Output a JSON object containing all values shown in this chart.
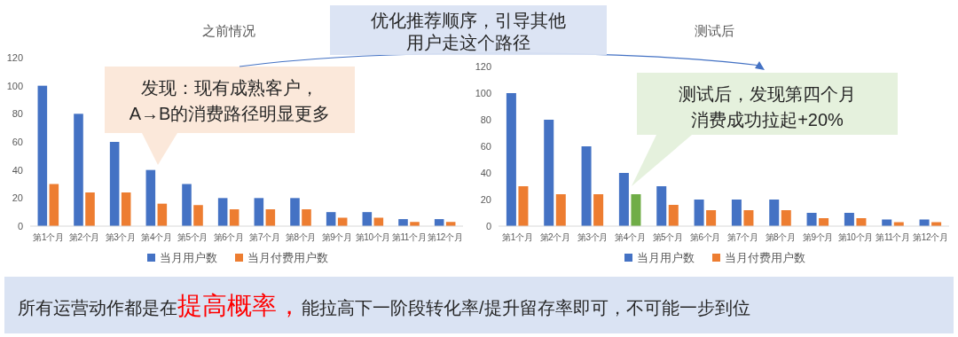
{
  "chart_data": [
    {
      "type": "bar",
      "title": "之前情况",
      "categories": [
        "第1个月",
        "第2个月",
        "第3个月",
        "第4个月",
        "第5个月",
        "第6个月",
        "第7个月",
        "第8个月",
        "第9个月",
        "第10个月",
        "第11个月",
        "第12个月"
      ],
      "series": [
        {
          "name": "当月用户数",
          "color": "#4472c4",
          "values": [
            100,
            80,
            60,
            40,
            30,
            20,
            20,
            20,
            10,
            10,
            5,
            5
          ]
        },
        {
          "name": "当月付费用户数",
          "color": "#ed7d31",
          "values": [
            30,
            24,
            24,
            16,
            15,
            12,
            12,
            12,
            6,
            6,
            3,
            3
          ]
        }
      ],
      "ylim": [
        0,
        120
      ],
      "yticks": [
        0,
        20,
        40,
        60,
        80,
        100,
        120
      ],
      "legend": "bottom",
      "annotations": [
        "发现：现有成熟客户，A→B的消费路径明显更多"
      ]
    },
    {
      "type": "bar",
      "title": "测试后",
      "categories": [
        "第1个月",
        "第2个月",
        "第3个月",
        "第4个月",
        "第5个月",
        "第6个月",
        "第7个月",
        "第8个月",
        "第9个月",
        "第10个月",
        "第11个月",
        "第12个月"
      ],
      "series": [
        {
          "name": "当月用户数",
          "color": "#4472c4",
          "values": [
            100,
            80,
            60,
            40,
            30,
            20,
            20,
            20,
            10,
            10,
            5,
            5
          ]
        },
        {
          "name": "当月付费用户数",
          "color": "#ed7d31",
          "colors": [
            "#ed7d31",
            "#ed7d31",
            "#ed7d31",
            "#70ad47",
            "#ed7d31",
            "#ed7d31",
            "#ed7d31",
            "#ed7d31",
            "#ed7d31",
            "#ed7d31",
            "#ed7d31",
            "#ed7d31"
          ],
          "values": [
            30,
            24,
            24,
            24,
            16,
            12,
            12,
            12,
            6,
            6,
            3,
            3
          ]
        }
      ],
      "ylim": [
        0,
        120
      ],
      "yticks": [
        0,
        20,
        40,
        60,
        80,
        100,
        120
      ],
      "legend": "bottom",
      "annotations": [
        "测试后，发现第四个月消费成功拉起+20%"
      ]
    },
    {
      "type": "other",
      "annotations": [
        "优化推荐顺序，引导其他用户走这个路径",
        "所有运营动作都是在",
        "提高概率，",
        "能拉高下一阶段转化率/提升留存率即可，不可能一步到位"
      ]
    }
  ]
}
